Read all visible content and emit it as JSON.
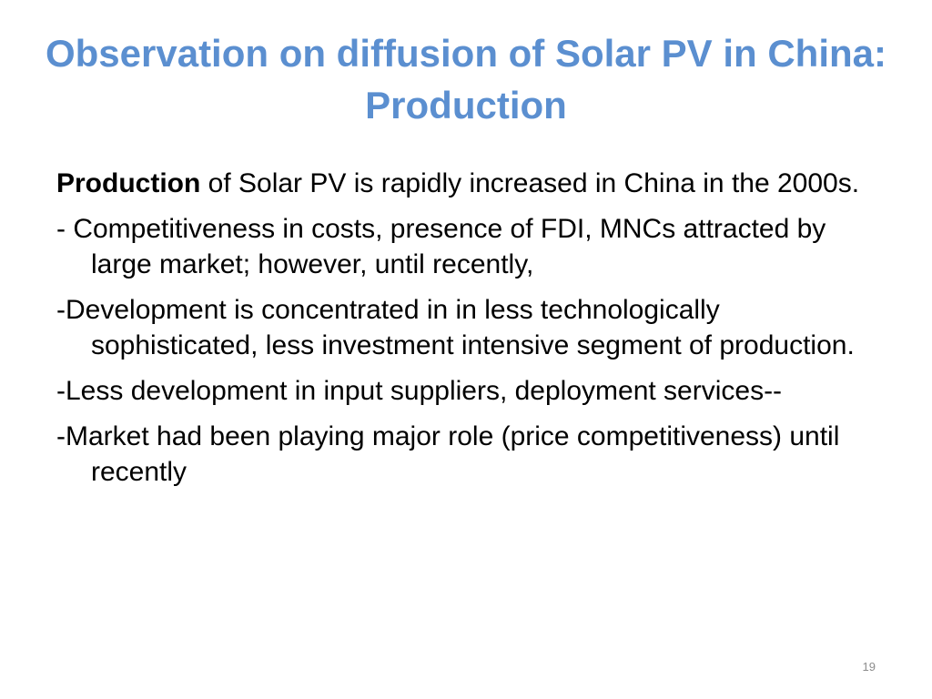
{
  "slide": {
    "title": "Observation on diffusion of Solar PV in China: Production",
    "title_color": "#5b8fd0",
    "bullets": [
      {
        "lead": "Production",
        "text": " of Solar PV is rapidly increased in China in the 2000s."
      },
      {
        "lead": "",
        "text": "- Competitiveness in costs, presence of FDI, MNCs attracted by large market; however, until recently,"
      },
      {
        "lead": "",
        "text": "-Development is concentrated in in less technologically sophisticated, less investment intensive segment of production."
      },
      {
        "lead": "",
        "text": "-Less development in input suppliers, deployment services--"
      },
      {
        "lead": "",
        "text": "-Market had been playing  major role (price competitiveness) until recently"
      }
    ],
    "page_number": "19"
  }
}
